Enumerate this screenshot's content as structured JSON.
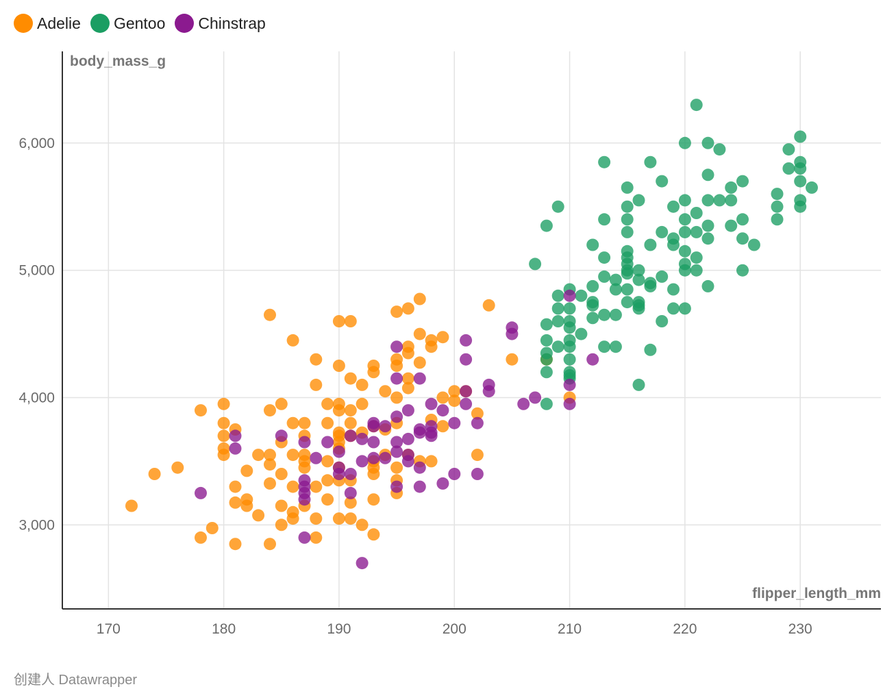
{
  "chart_data": {
    "type": "scatter",
    "xlabel": "flipper_length_mm",
    "ylabel": "body_mass_g",
    "xlim": [
      166,
      237
    ],
    "ylim": [
      2340,
      6720
    ],
    "xticks": [
      170,
      180,
      190,
      200,
      210,
      220,
      230
    ],
    "yticks": [
      3000,
      4000,
      5000,
      6000
    ],
    "ytick_labels": [
      "3,000",
      "4,000",
      "5,000",
      "6,000"
    ],
    "grid": true,
    "legend_placement": "top-left",
    "series": [
      {
        "name": "Adelie",
        "color": "#ff8c00",
        "points": [
          [
            172,
            3150
          ],
          [
            174,
            3400
          ],
          [
            176,
            3450
          ],
          [
            178,
            3900
          ],
          [
            178,
            2900
          ],
          [
            179,
            2975
          ],
          [
            180,
            3950
          ],
          [
            180,
            3800
          ],
          [
            180,
            3700
          ],
          [
            180,
            3600
          ],
          [
            180,
            3550
          ],
          [
            181,
            3750
          ],
          [
            181,
            3300
          ],
          [
            181,
            3175
          ],
          [
            181,
            2850
          ],
          [
            182,
            3200
          ],
          [
            182,
            3150
          ],
          [
            182,
            3425
          ],
          [
            183,
            3550
          ],
          [
            183,
            3075
          ],
          [
            184,
            4650
          ],
          [
            184,
            3900
          ],
          [
            184,
            3550
          ],
          [
            184,
            3475
          ],
          [
            184,
            3325
          ],
          [
            184,
            2850
          ],
          [
            185,
            3950
          ],
          [
            185,
            3650
          ],
          [
            185,
            3400
          ],
          [
            185,
            3150
          ],
          [
            185,
            3000
          ],
          [
            186,
            4450
          ],
          [
            186,
            3800
          ],
          [
            186,
            3550
          ],
          [
            186,
            3300
          ],
          [
            186,
            3100
          ],
          [
            186,
            3050
          ],
          [
            187,
            3800
          ],
          [
            187,
            3700
          ],
          [
            187,
            3550
          ],
          [
            187,
            3500
          ],
          [
            187,
            3450
          ],
          [
            187,
            3150
          ],
          [
            188,
            4300
          ],
          [
            188,
            4100
          ],
          [
            188,
            3300
          ],
          [
            188,
            3050
          ],
          [
            188,
            2900
          ],
          [
            189,
            3950
          ],
          [
            189,
            3800
          ],
          [
            189,
            3500
          ],
          [
            189,
            3350
          ],
          [
            189,
            3200
          ],
          [
            190,
            4600
          ],
          [
            190,
            4250
          ],
          [
            190,
            3950
          ],
          [
            190,
            3900
          ],
          [
            190,
            3725
          ],
          [
            190,
            3700
          ],
          [
            190,
            3650
          ],
          [
            190,
            3600
          ],
          [
            190,
            3450
          ],
          [
            190,
            3350
          ],
          [
            190,
            3050
          ],
          [
            191,
            4600
          ],
          [
            191,
            4150
          ],
          [
            191,
            3900
          ],
          [
            191,
            3800
          ],
          [
            191,
            3700
          ],
          [
            191,
            3350
          ],
          [
            191,
            3175
          ],
          [
            191,
            3050
          ],
          [
            192,
            4100
          ],
          [
            192,
            3950
          ],
          [
            192,
            3725
          ],
          [
            192,
            3000
          ],
          [
            193,
            4250
          ],
          [
            193,
            4200
          ],
          [
            193,
            3775
          ],
          [
            193,
            3500
          ],
          [
            193,
            3450
          ],
          [
            193,
            3400
          ],
          [
            193,
            3200
          ],
          [
            193,
            2925
          ],
          [
            194,
            4050
          ],
          [
            194,
            3750
          ],
          [
            194,
            3550
          ],
          [
            195,
            4675
          ],
          [
            195,
            4300
          ],
          [
            195,
            4250
          ],
          [
            195,
            4000
          ],
          [
            195,
            3800
          ],
          [
            195,
            3450
          ],
          [
            195,
            3350
          ],
          [
            195,
            3250
          ],
          [
            196,
            4700
          ],
          [
            196,
            4400
          ],
          [
            196,
            4350
          ],
          [
            196,
            4150
          ],
          [
            196,
            4075
          ],
          [
            196,
            3550
          ],
          [
            197,
            4775
          ],
          [
            197,
            4500
          ],
          [
            197,
            4275
          ],
          [
            197,
            3500
          ],
          [
            198,
            4450
          ],
          [
            198,
            4400
          ],
          [
            198,
            3825
          ],
          [
            198,
            3500
          ],
          [
            199,
            4475
          ],
          [
            199,
            4000
          ],
          [
            199,
            3775
          ],
          [
            200,
            4050
          ],
          [
            200,
            3975
          ],
          [
            201,
            4050
          ],
          [
            202,
            3875
          ],
          [
            202,
            3550
          ],
          [
            203,
            4725
          ],
          [
            205,
            4300
          ],
          [
            208,
            4300
          ],
          [
            210,
            4000
          ]
        ]
      },
      {
        "name": "Gentoo",
        "color": "#1b9e63",
        "points": [
          [
            207,
            5050
          ],
          [
            208,
            5350
          ],
          [
            208,
            4575
          ],
          [
            208,
            4450
          ],
          [
            208,
            4350
          ],
          [
            208,
            4300
          ],
          [
            208,
            4200
          ],
          [
            208,
            3950
          ],
          [
            209,
            5500
          ],
          [
            209,
            4800
          ],
          [
            209,
            4700
          ],
          [
            209,
            4600
          ],
          [
            209,
            4400
          ],
          [
            210,
            4850
          ],
          [
            210,
            4700
          ],
          [
            210,
            4600
          ],
          [
            210,
            4550
          ],
          [
            210,
            4450
          ],
          [
            210,
            4400
          ],
          [
            210,
            4300
          ],
          [
            210,
            4200
          ],
          [
            210,
            4175
          ],
          [
            210,
            4150
          ],
          [
            211,
            4800
          ],
          [
            211,
            4500
          ],
          [
            212,
            5200
          ],
          [
            212,
            4875
          ],
          [
            212,
            4750
          ],
          [
            212,
            4725
          ],
          [
            212,
            4625
          ],
          [
            213,
            5850
          ],
          [
            213,
            5400
          ],
          [
            213,
            5100
          ],
          [
            213,
            4950
          ],
          [
            213,
            4650
          ],
          [
            213,
            4400
          ],
          [
            214,
            4925
          ],
          [
            214,
            4850
          ],
          [
            214,
            4650
          ],
          [
            214,
            4400
          ],
          [
            215,
            5650
          ],
          [
            215,
            5500
          ],
          [
            215,
            5400
          ],
          [
            215,
            5300
          ],
          [
            215,
            5150
          ],
          [
            215,
            5100
          ],
          [
            215,
            5050
          ],
          [
            215,
            5000
          ],
          [
            215,
            4975
          ],
          [
            215,
            4850
          ],
          [
            215,
            4750
          ],
          [
            216,
            5550
          ],
          [
            216,
            5000
          ],
          [
            216,
            4925
          ],
          [
            216,
            4750
          ],
          [
            216,
            4725
          ],
          [
            216,
            4700
          ],
          [
            216,
            4100
          ],
          [
            217,
            5850
          ],
          [
            217,
            5200
          ],
          [
            217,
            4900
          ],
          [
            217,
            4875
          ],
          [
            217,
            4375
          ],
          [
            218,
            5700
          ],
          [
            218,
            5300
          ],
          [
            218,
            4950
          ],
          [
            218,
            4600
          ],
          [
            219,
            5500
          ],
          [
            219,
            5250
          ],
          [
            219,
            5200
          ],
          [
            219,
            4850
          ],
          [
            219,
            4700
          ],
          [
            220,
            6000
          ],
          [
            220,
            5550
          ],
          [
            220,
            5400
          ],
          [
            220,
            5300
          ],
          [
            220,
            5150
          ],
          [
            220,
            5050
          ],
          [
            220,
            5000
          ],
          [
            220,
            4700
          ],
          [
            221,
            6300
          ],
          [
            221,
            5450
          ],
          [
            221,
            5300
          ],
          [
            221,
            5100
          ],
          [
            221,
            5000
          ],
          [
            222,
            6000
          ],
          [
            222,
            5750
          ],
          [
            222,
            5550
          ],
          [
            222,
            5350
          ],
          [
            222,
            5250
          ],
          [
            222,
            4875
          ],
          [
            223,
            5950
          ],
          [
            223,
            5550
          ],
          [
            224,
            5650
          ],
          [
            224,
            5550
          ],
          [
            224,
            5350
          ],
          [
            225,
            5700
          ],
          [
            225,
            5400
          ],
          [
            225,
            5250
          ],
          [
            225,
            5000
          ],
          [
            226,
            5200
          ],
          [
            228,
            5600
          ],
          [
            228,
            5500
          ],
          [
            228,
            5400
          ],
          [
            229,
            5950
          ],
          [
            229,
            5800
          ],
          [
            230,
            6050
          ],
          [
            230,
            5850
          ],
          [
            230,
            5800
          ],
          [
            230,
            5700
          ],
          [
            230,
            5550
          ],
          [
            230,
            5500
          ],
          [
            231,
            5650
          ]
        ]
      },
      {
        "name": "Chinstrap",
        "color": "#8b1a8f",
        "points": [
          [
            178,
            3250
          ],
          [
            181,
            3700
          ],
          [
            181,
            3600
          ],
          [
            185,
            3700
          ],
          [
            187,
            3650
          ],
          [
            187,
            3350
          ],
          [
            187,
            3300
          ],
          [
            187,
            3250
          ],
          [
            187,
            3200
          ],
          [
            187,
            2900
          ],
          [
            188,
            3525
          ],
          [
            189,
            3650
          ],
          [
            190,
            3575
          ],
          [
            190,
            3450
          ],
          [
            190,
            3400
          ],
          [
            191,
            3700
          ],
          [
            191,
            3400
          ],
          [
            191,
            3250
          ],
          [
            192,
            3675
          ],
          [
            192,
            3500
          ],
          [
            193,
            3800
          ],
          [
            193,
            3775
          ],
          [
            193,
            3650
          ],
          [
            193,
            3525
          ],
          [
            194,
            3775
          ],
          [
            194,
            3525
          ],
          [
            195,
            4400
          ],
          [
            195,
            4150
          ],
          [
            195,
            3850
          ],
          [
            195,
            3650
          ],
          [
            195,
            3575
          ],
          [
            195,
            3300
          ],
          [
            196,
            3900
          ],
          [
            196,
            3675
          ],
          [
            196,
            3550
          ],
          [
            196,
            3500
          ],
          [
            197,
            4150
          ],
          [
            197,
            3750
          ],
          [
            197,
            3725
          ],
          [
            197,
            3450
          ],
          [
            197,
            3300
          ],
          [
            198,
            3950
          ],
          [
            198,
            3775
          ],
          [
            198,
            3725
          ],
          [
            198,
            3700
          ],
          [
            199,
            3900
          ],
          [
            199,
            3325
          ],
          [
            200,
            3800
          ],
          [
            200,
            3400
          ],
          [
            201,
            4450
          ],
          [
            201,
            4300
          ],
          [
            201,
            4050
          ],
          [
            201,
            3950
          ],
          [
            202,
            3800
          ],
          [
            202,
            3400
          ],
          [
            203,
            4100
          ],
          [
            203,
            4050
          ],
          [
            205,
            4550
          ],
          [
            205,
            4500
          ],
          [
            206,
            3950
          ],
          [
            207,
            4000
          ],
          [
            210,
            4800
          ],
          [
            210,
            4100
          ],
          [
            210,
            3950
          ],
          [
            212,
            4300
          ],
          [
            192,
            2700
          ]
        ]
      }
    ]
  },
  "footer": "创建人 Datawrapper"
}
